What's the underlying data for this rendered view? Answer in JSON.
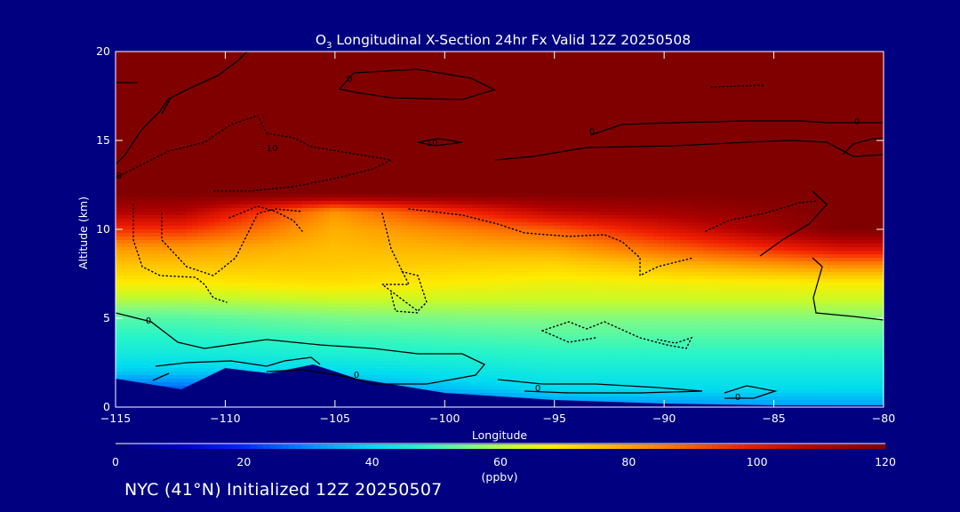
{
  "chart_data": {
    "type": "heatmap",
    "title_prefix": "O",
    "title_sub": "3",
    "title_rest": " Longitudinal X-Section 24hr  Fx Valid 12Z 20250508",
    "xlabel": "Longitude",
    "ylabel": "Altitude (km)",
    "xlim": [
      -115,
      -80
    ],
    "ylim": [
      0,
      20
    ],
    "x_ticks": [
      -115,
      -110,
      -105,
      -100,
      -95,
      -90,
      -85,
      -80
    ],
    "x_tick_labels": [
      "−115",
      "−110",
      "−105",
      "−100",
      "−95",
      "−90",
      "−85",
      "−80"
    ],
    "y_ticks": [
      0,
      5,
      10,
      15,
      20
    ],
    "colorbar": {
      "ticks": [
        0,
        20,
        40,
        60,
        80,
        100,
        120
      ],
      "range": [
        0,
        120
      ],
      "units": "(ppbv)"
    },
    "ozone_profile_ppbv": {
      "altitude_km": [
        0,
        1,
        2,
        3,
        4,
        5,
        6,
        7,
        8,
        9,
        10,
        11,
        12,
        13,
        15,
        20
      ],
      "longitude_-112": [
        10,
        25,
        38,
        44,
        48,
        52,
        60,
        68,
        75,
        82,
        96,
        110,
        120,
        120,
        120,
        120
      ],
      "longitude_-105": [
        10,
        32,
        40,
        46,
        50,
        55,
        62,
        70,
        74,
        76,
        78,
        82,
        120,
        120,
        120,
        120
      ],
      "longitude_-95": [
        30,
        40,
        44,
        48,
        52,
        56,
        62,
        66,
        72,
        80,
        90,
        108,
        120,
        120,
        120,
        120
      ],
      "longitude_-82": [
        32,
        40,
        44,
        48,
        52,
        56,
        62,
        68,
        84,
        104,
        120,
        120,
        120,
        120,
        120,
        120
      ]
    },
    "terrain_top_km": {
      "lon": [
        -115,
        -112,
        -110,
        -108,
        -106,
        -104,
        -100,
        -95,
        -90,
        -85,
        -80
      ],
      "alt": [
        1.6,
        1.0,
        2.2,
        1.9,
        2.4,
        1.6,
        0.8,
        0.4,
        0.2,
        0.1,
        0.1
      ]
    },
    "contour_labels": [
      "0",
      "0",
      "0",
      "0",
      "0",
      "0",
      "10",
      "10",
      "0",
      "0"
    ]
  },
  "footer": {
    "text": "NYC (41°N) Initialized 12Z 20250507"
  },
  "colors": {
    "background": "#000080",
    "text": "#ffffff",
    "contour": "#000000"
  }
}
